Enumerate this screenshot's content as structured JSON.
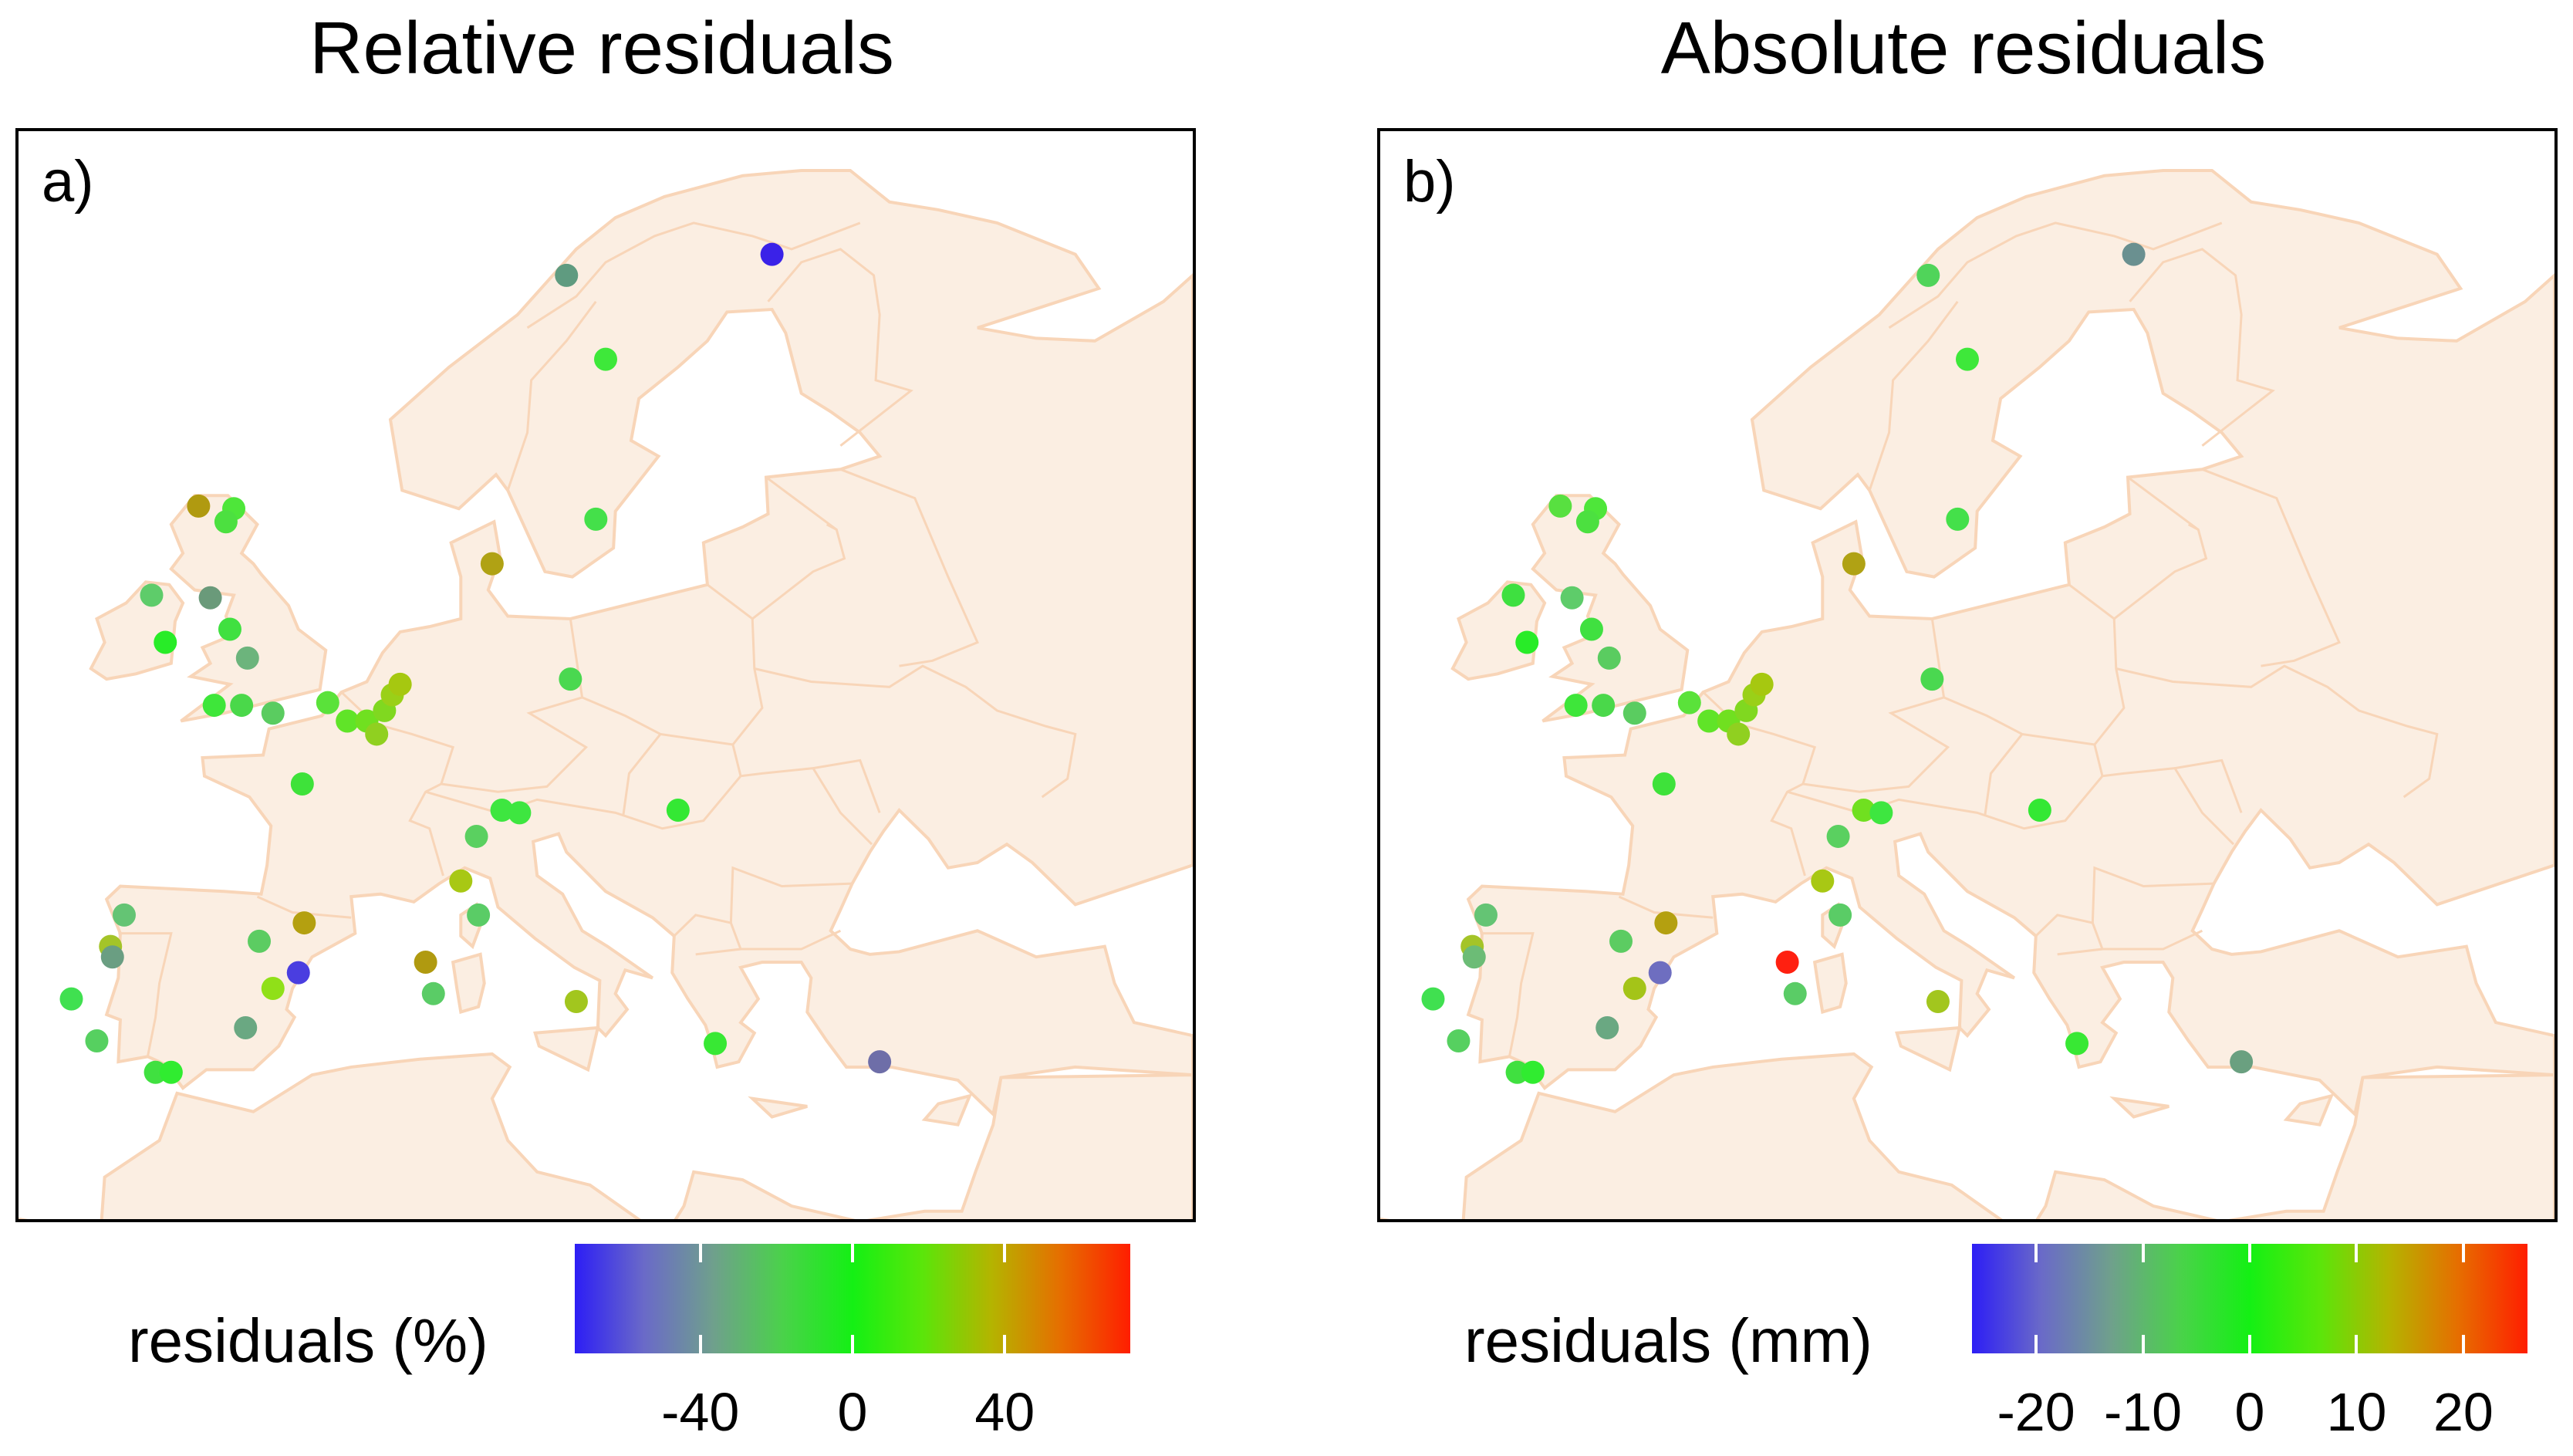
{
  "panels": [
    {
      "title": "Relative residuals",
      "label": "a)",
      "legend": {
        "title": "residuals (%)",
        "ticks": [
          "-40",
          "0",
          "40"
        ],
        "tick_values": [
          -40,
          0,
          40
        ],
        "range": [
          -73,
          73
        ],
        "gradient": [
          "#2d1ef5",
          "#6a6ac8",
          "#6fa08c",
          "#4ad24a",
          "#14f014",
          "#5ae60a",
          "#b4b400",
          "#e66e00",
          "#ff1e00"
        ]
      },
      "stations": [
        {
          "lon": 24.5,
          "lat": 67.8,
          "color": "#3a22e8"
        },
        {
          "lon": 14.0,
          "lat": 67.0,
          "color": "#5f9b80"
        },
        {
          "lon": 16.0,
          "lat": 63.8,
          "color": "#3ee83a"
        },
        {
          "lon": -4.8,
          "lat": 58.2,
          "color": "#b09a10"
        },
        {
          "lon": -3.0,
          "lat": 58.1,
          "color": "#4ee63a"
        },
        {
          "lon": -3.4,
          "lat": 57.6,
          "color": "#4ce040"
        },
        {
          "lon": -7.2,
          "lat": 54.8,
          "color": "#5ecc6a"
        },
        {
          "lon": -4.2,
          "lat": 54.7,
          "color": "#6a9a7a"
        },
        {
          "lon": 15.5,
          "lat": 57.7,
          "color": "#44e04a"
        },
        {
          "lon": 10.2,
          "lat": 56.0,
          "color": "#b0a214"
        },
        {
          "lon": -6.5,
          "lat": 53.0,
          "color": "#28ec28"
        },
        {
          "lon": -3.2,
          "lat": 53.5,
          "color": "#40e040"
        },
        {
          "lon": -2.3,
          "lat": 52.4,
          "color": "#6cb47c"
        },
        {
          "lon": -4.0,
          "lat": 50.6,
          "color": "#3ee63a"
        },
        {
          "lon": -2.6,
          "lat": 50.6,
          "color": "#4ad84a"
        },
        {
          "lon": -1.0,
          "lat": 50.3,
          "color": "#5acc60"
        },
        {
          "lon": 1.8,
          "lat": 50.7,
          "color": "#5ae23a"
        },
        {
          "lon": 2.8,
          "lat": 50.0,
          "color": "#60e428"
        },
        {
          "lon": 3.8,
          "lat": 50.0,
          "color": "#70e020"
        },
        {
          "lon": 4.3,
          "lat": 49.5,
          "color": "#90d020"
        },
        {
          "lon": 4.7,
          "lat": 50.4,
          "color": "#80d820"
        },
        {
          "lon": 5.1,
          "lat": 51.0,
          "color": "#9ad018"
        },
        {
          "lon": 5.5,
          "lat": 51.4,
          "color": "#a6c810"
        },
        {
          "lon": 14.2,
          "lat": 51.6,
          "color": "#4ad850"
        },
        {
          "lon": 0.5,
          "lat": 47.6,
          "color": "#3ee23a"
        },
        {
          "lon": 10.7,
          "lat": 46.6,
          "color": "#3ee640"
        },
        {
          "lon": 11.6,
          "lat": 46.5,
          "color": "#3ee640"
        },
        {
          "lon": 9.4,
          "lat": 45.6,
          "color": "#5ad060"
        },
        {
          "lon": 19.7,
          "lat": 46.6,
          "color": "#34e834"
        },
        {
          "lon": 8.6,
          "lat": 43.9,
          "color": "#a8c814"
        },
        {
          "lon": 9.5,
          "lat": 42.6,
          "color": "#5acc66"
        },
        {
          "lon": -8.6,
          "lat": 42.6,
          "color": "#64c474"
        },
        {
          "lon": -9.3,
          "lat": 41.4,
          "color": "#a4c428"
        },
        {
          "lon": -9.2,
          "lat": 41.0,
          "color": "#6a9e82"
        },
        {
          "lon": -11.3,
          "lat": 39.4,
          "color": "#40e050"
        },
        {
          "lon": -1.7,
          "lat": 41.6,
          "color": "#5ccc62"
        },
        {
          "lon": 0.6,
          "lat": 42.3,
          "color": "#b4a010"
        },
        {
          "lon": 0.3,
          "lat": 40.4,
          "color": "#4a3ee0"
        },
        {
          "lon": -1.0,
          "lat": 39.8,
          "color": "#90e018"
        },
        {
          "lon": -2.4,
          "lat": 38.3,
          "color": "#6aa882"
        },
        {
          "lon": 6.8,
          "lat": 40.8,
          "color": "#b09a10"
        },
        {
          "lon": 7.2,
          "lat": 39.6,
          "color": "#5acc66"
        },
        {
          "lon": 14.5,
          "lat": 39.3,
          "color": "#a2c61e"
        },
        {
          "lon": -10.0,
          "lat": 37.8,
          "color": "#56d060"
        },
        {
          "lon": -7.0,
          "lat": 36.6,
          "color": "#40e040"
        },
        {
          "lon": -6.2,
          "lat": 36.6,
          "color": "#30ec30"
        },
        {
          "lon": 21.6,
          "lat": 37.7,
          "color": "#38e834"
        },
        {
          "lon": 30.0,
          "lat": 37.0,
          "color": "#6e6ea8"
        }
      ]
    },
    {
      "title": "Absolute residuals",
      "label": "b)",
      "legend": {
        "title": "residuals (mm)",
        "ticks": [
          "-20",
          "-10",
          "0",
          "10",
          "20"
        ],
        "tick_values": [
          -20,
          -10,
          0,
          10,
          20
        ],
        "range": [
          -26,
          26
        ],
        "gradient": [
          "#2d1ef5",
          "#6a6ac8",
          "#6fa08c",
          "#4ad24a",
          "#14f014",
          "#5ae60a",
          "#b4b400",
          "#e66e00",
          "#ff1e00"
        ]
      },
      "stations": [
        {
          "lon": 24.5,
          "lat": 67.8,
          "color": "#6a9090"
        },
        {
          "lon": 14.0,
          "lat": 67.0,
          "color": "#50d45a"
        },
        {
          "lon": 16.0,
          "lat": 63.8,
          "color": "#3ee83a"
        },
        {
          "lon": -4.8,
          "lat": 58.2,
          "color": "#58e040"
        },
        {
          "lon": -3.0,
          "lat": 58.1,
          "color": "#4ee63a"
        },
        {
          "lon": -3.4,
          "lat": 57.6,
          "color": "#4ce040"
        },
        {
          "lon": -7.2,
          "lat": 54.8,
          "color": "#3ee040"
        },
        {
          "lon": -4.2,
          "lat": 54.7,
          "color": "#5ecc6a"
        },
        {
          "lon": 15.5,
          "lat": 57.7,
          "color": "#44e04a"
        },
        {
          "lon": 10.2,
          "lat": 56.0,
          "color": "#b0a214"
        },
        {
          "lon": -6.5,
          "lat": 53.0,
          "color": "#28ec28"
        },
        {
          "lon": -3.2,
          "lat": 53.5,
          "color": "#40e040"
        },
        {
          "lon": -2.3,
          "lat": 52.4,
          "color": "#5acc60"
        },
        {
          "lon": -4.0,
          "lat": 50.6,
          "color": "#3ee63a"
        },
        {
          "lon": -2.6,
          "lat": 50.6,
          "color": "#4ad84a"
        },
        {
          "lon": -1.0,
          "lat": 50.3,
          "color": "#5acc60"
        },
        {
          "lon": 1.8,
          "lat": 50.7,
          "color": "#5ae23a"
        },
        {
          "lon": 2.8,
          "lat": 50.0,
          "color": "#60e428"
        },
        {
          "lon": 3.8,
          "lat": 50.0,
          "color": "#70e020"
        },
        {
          "lon": 4.3,
          "lat": 49.5,
          "color": "#90d020"
        },
        {
          "lon": 4.7,
          "lat": 50.4,
          "color": "#80d820"
        },
        {
          "lon": 5.1,
          "lat": 51.0,
          "color": "#9ad018"
        },
        {
          "lon": 5.5,
          "lat": 51.4,
          "color": "#a6c810"
        },
        {
          "lon": 14.2,
          "lat": 51.6,
          "color": "#4ad850"
        },
        {
          "lon": 0.5,
          "lat": 47.6,
          "color": "#3ee23a"
        },
        {
          "lon": 10.7,
          "lat": 46.6,
          "color": "#70e020"
        },
        {
          "lon": 11.6,
          "lat": 46.5,
          "color": "#3ee640"
        },
        {
          "lon": 9.4,
          "lat": 45.6,
          "color": "#5ad060"
        },
        {
          "lon": 19.7,
          "lat": 46.6,
          "color": "#34e834"
        },
        {
          "lon": 8.6,
          "lat": 43.9,
          "color": "#a8c814"
        },
        {
          "lon": 9.5,
          "lat": 42.6,
          "color": "#5acc66"
        },
        {
          "lon": -8.6,
          "lat": 42.6,
          "color": "#64c474"
        },
        {
          "lon": -9.3,
          "lat": 41.4,
          "color": "#a4c428"
        },
        {
          "lon": -9.2,
          "lat": 41.0,
          "color": "#6cbc76"
        },
        {
          "lon": -11.3,
          "lat": 39.4,
          "color": "#40e050"
        },
        {
          "lon": -1.7,
          "lat": 41.6,
          "color": "#5ccc62"
        },
        {
          "lon": 0.6,
          "lat": 42.3,
          "color": "#b4a010"
        },
        {
          "lon": 0.3,
          "lat": 40.4,
          "color": "#6e6ec0"
        },
        {
          "lon": -1.0,
          "lat": 39.8,
          "color": "#a4c418"
        },
        {
          "lon": -2.4,
          "lat": 38.3,
          "color": "#6aa882"
        },
        {
          "lon": 6.8,
          "lat": 40.8,
          "color": "#ff2010"
        },
        {
          "lon": 7.2,
          "lat": 39.6,
          "color": "#5acc66"
        },
        {
          "lon": 14.5,
          "lat": 39.3,
          "color": "#a2c61e"
        },
        {
          "lon": -10.0,
          "lat": 37.8,
          "color": "#56d060"
        },
        {
          "lon": -7.0,
          "lat": 36.6,
          "color": "#40e040"
        },
        {
          "lon": -6.2,
          "lat": 36.6,
          "color": "#30ec30"
        },
        {
          "lon": 21.6,
          "lat": 37.7,
          "color": "#38e834"
        },
        {
          "lon": 30.0,
          "lat": 37.0,
          "color": "#6aa080"
        }
      ]
    }
  ],
  "land_color": "#fbeee2",
  "border_color": "#f8d5b8"
}
